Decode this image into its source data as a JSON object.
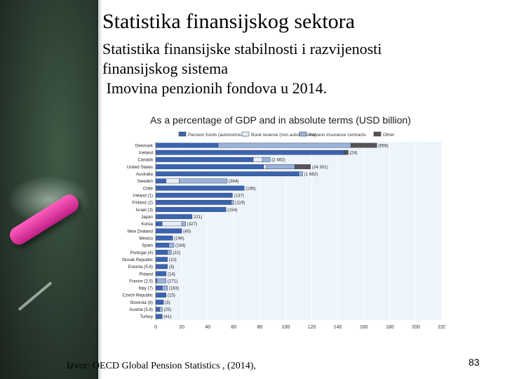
{
  "slide": {
    "title": "Statistika finansijskog sektora",
    "subtitle_line1": "Statistika finansijske stabilnosti i razvijenosti",
    "subtitle_line2": "finansijskog sistema",
    "subtitle_line3": " Imovina penzionih fondova u 2014.",
    "footer": "Izvor: OECD Global Pension Statistics , (2014),",
    "page_number": "83"
  },
  "chart_data": {
    "type": "bar",
    "stacked": true,
    "orientation": "horizontal",
    "title": "As a percentage of GDP and in absolute terms (USD billion)",
    "legend": [
      "Pension funds (autonomous)",
      "Book reserve (non autonomous)",
      "Pension insurance contracts",
      "Other"
    ],
    "legend_position": "top",
    "colors": [
      "#3b63b0",
      "#e8eef8",
      "#9bb2d9",
      "#555555"
    ],
    "xlim": [
      0,
      220
    ],
    "xticks": [
      0,
      20,
      40,
      60,
      80,
      100,
      120,
      140,
      160,
      180,
      200,
      220
    ],
    "categories": [
      "Denmark",
      "Iceland",
      "Canada",
      "United States",
      "Australia",
      "Sweden",
      "Chile",
      "Ireland (1)",
      "Finland (2)",
      "Israel (3)",
      "Japan",
      "Korea",
      "New Zealand",
      "Mexico",
      "Spain",
      "Portugal (4)",
      "Slovak Republic",
      "Estonia (5,6)",
      "Poland",
      "France (2,5)",
      "Italy (7)",
      "Czech Republic",
      "Slovenia (8)",
      "Austria (5,8)",
      "Turkey"
    ],
    "series": [
      {
        "name": "Pension funds (autonomous)",
        "values": [
          48,
          145,
          75,
          83,
          110,
          8,
          68,
          59,
          58,
          54,
          28,
          5,
          20,
          13,
          10,
          9,
          9,
          9,
          8,
          1,
          5,
          8,
          6,
          3,
          5
        ]
      },
      {
        "name": "Book reserve (non autonomous)",
        "values": [
          0,
          0,
          7,
          2,
          0,
          10,
          0,
          0,
          0,
          0,
          0,
          15,
          0,
          0,
          0,
          0,
          0,
          0,
          0,
          0,
          0,
          0,
          0,
          0,
          0
        ]
      },
      {
        "name": "Pension insurance contracts",
        "values": [
          102,
          0,
          6,
          22,
          3,
          37,
          0,
          0,
          2,
          0,
          0,
          3,
          0,
          0,
          4,
          3,
          0,
          0,
          0,
          7,
          4,
          0,
          0,
          2,
          0
        ]
      },
      {
        "name": "Other",
        "values": [
          20,
          3,
          0,
          12,
          0,
          0,
          0,
          0,
          0,
          0,
          0,
          0,
          0,
          0,
          0,
          0,
          0,
          0,
          0,
          0,
          0,
          0,
          0,
          0,
          0
        ]
      }
    ],
    "bar_labels": [
      "(656)",
      "(24)",
      "(2 462)",
      "(24 301)",
      "(1 682)",
      "(384)",
      "(165)",
      "(137)",
      "(119)",
      "(154)",
      "221)",
      "(327)",
      "(40)",
      "(196)",
      "(184)",
      "(22)",
      "(10)",
      "(3)",
      "(14)",
      "(271)",
      "(183)",
      "(15)",
      "(3)",
      "(25)",
      "(41)"
    ]
  }
}
